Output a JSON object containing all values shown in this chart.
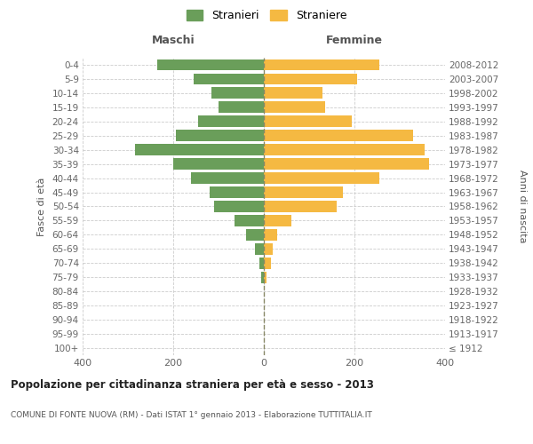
{
  "age_groups": [
    "100+",
    "95-99",
    "90-94",
    "85-89",
    "80-84",
    "75-79",
    "70-74",
    "65-69",
    "60-64",
    "55-59",
    "50-54",
    "45-49",
    "40-44",
    "35-39",
    "30-34",
    "25-29",
    "20-24",
    "15-19",
    "10-14",
    "5-9",
    "0-4"
  ],
  "birth_years": [
    "≤ 1912",
    "1913-1917",
    "1918-1922",
    "1923-1927",
    "1928-1932",
    "1933-1937",
    "1938-1942",
    "1943-1947",
    "1948-1952",
    "1953-1957",
    "1958-1962",
    "1963-1967",
    "1968-1972",
    "1973-1977",
    "1978-1982",
    "1983-1987",
    "1988-1992",
    "1993-1997",
    "1998-2002",
    "2003-2007",
    "2008-2012"
  ],
  "maschi": [
    0,
    0,
    0,
    0,
    0,
    5,
    10,
    20,
    40,
    65,
    110,
    120,
    160,
    200,
    285,
    195,
    145,
    100,
    115,
    155,
    235
  ],
  "femmine": [
    0,
    0,
    0,
    0,
    0,
    5,
    15,
    20,
    30,
    60,
    160,
    175,
    255,
    365,
    355,
    330,
    195,
    135,
    130,
    205,
    255
  ],
  "color_maschi": "#6a9e5a",
  "color_femmine": "#f5b942",
  "title": "Popolazione per cittadinanza straniera per età e sesso - 2013",
  "subtitle": "COMUNE DI FONTE NUOVA (RM) - Dati ISTAT 1° gennaio 2013 - Elaborazione TUTTITALIA.IT",
  "ylabel_left": "Fasce di età",
  "ylabel_right": "Anni di nascita",
  "xlabel_left": "Maschi",
  "xlabel_right": "Femmine",
  "legend_maschi": "Stranieri",
  "legend_femmine": "Straniere",
  "xlim": 400,
  "background_color": "#ffffff",
  "grid_color": "#cccccc"
}
